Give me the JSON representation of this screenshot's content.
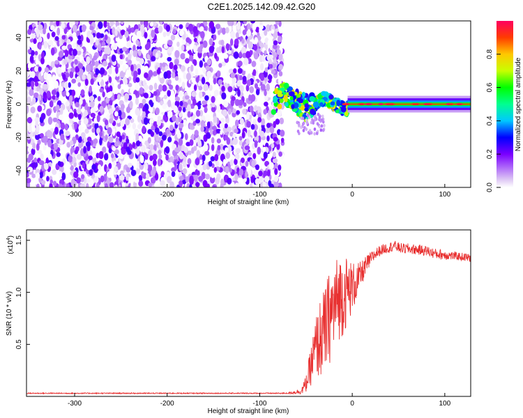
{
  "title": "C2E1.2025.142.09.42.G20",
  "colors": {
    "snr_line": "#e83030",
    "frame": "#000000",
    "background": "#ffffff"
  },
  "chart_data": [
    {
      "type": "heatmap",
      "name": "spectrogram",
      "xlabel": "Height of straight line (km)",
      "ylabel": "Frequency (Hz)",
      "xlim": [
        -352,
        128
      ],
      "ylim": [
        -50,
        50
      ],
      "xticks": [
        -300,
        -200,
        -100,
        0,
        100
      ],
      "xtick_labels": [
        "-300",
        "-200",
        "-100",
        "0",
        "100"
      ],
      "yticks": [
        -40,
        -20,
        0,
        20,
        40
      ],
      "ytick_labels": [
        "-40",
        "-20",
        "0",
        "20",
        "40"
      ],
      "colorbar": {
        "label": "Normalized spectral amplitude",
        "range": [
          0,
          1
        ],
        "ticks": [
          0.0,
          0.2,
          0.4,
          0.6,
          0.8
        ],
        "tick_labels": [
          "0.0",
          "0.2",
          "0.4",
          "0.6",
          "0.8"
        ],
        "colormap": "rainbow"
      },
      "features": {
        "noise_region_x": [
          -352,
          -78
        ],
        "noise_amplitude_range": [
          0.0,
          0.25
        ],
        "transition_x": [
          -85,
          -5
        ],
        "carrier_x": [
          -5,
          128
        ],
        "carrier_frequency_hz": 0,
        "carrier_amplitude": 1.0
      }
    },
    {
      "type": "line",
      "name": "snr",
      "xlabel": "Height of straight line (km)",
      "ylabel": "SNR (10 * v/v)",
      "y_multiplier_label": "(x10",
      "y_multiplier_exponent": "4",
      "y_multiplier_close": ")",
      "xlim": [
        -352,
        128
      ],
      "ylim": [
        0,
        1.6
      ],
      "xticks": [
        -300,
        -200,
        -100,
        0,
        100
      ],
      "xtick_labels": [
        "-300",
        "-200",
        "-100",
        "0",
        "100"
      ],
      "yticks": [
        0.5,
        1.0,
        1.5
      ],
      "ytick_labels": [
        "0.5",
        "1.0",
        "1.5"
      ],
      "x": [
        -352,
        -300,
        -250,
        -200,
        -150,
        -100,
        -70,
        -55,
        -50,
        -45,
        -40,
        -35,
        -30,
        -25,
        -20,
        -15,
        -10,
        -5,
        0,
        5,
        10,
        15,
        20,
        25,
        30,
        35,
        40,
        45,
        50,
        55,
        60,
        70,
        80,
        90,
        100,
        110,
        120,
        128
      ],
      "values": [
        0.03,
        0.03,
        0.03,
        0.03,
        0.03,
        0.03,
        0.03,
        0.05,
        0.12,
        0.28,
        0.45,
        0.55,
        0.62,
        0.75,
        0.85,
        0.95,
        0.98,
        1.02,
        1.05,
        1.1,
        1.18,
        1.26,
        1.32,
        1.37,
        1.4,
        1.42,
        1.43,
        1.45,
        1.43,
        1.42,
        1.42,
        1.41,
        1.4,
        1.37,
        1.36,
        1.35,
        1.34,
        1.33
      ],
      "noise_amplitude": [
        0.005,
        0.005,
        0.005,
        0.005,
        0.005,
        0.005,
        0.006,
        0.03,
        0.08,
        0.18,
        0.3,
        0.38,
        0.42,
        0.45,
        0.45,
        0.42,
        0.4,
        0.33,
        0.25,
        0.18,
        0.12,
        0.09,
        0.07,
        0.06,
        0.05,
        0.05,
        0.05,
        0.05,
        0.05,
        0.05,
        0.05,
        0.05,
        0.05,
        0.05,
        0.05,
        0.04,
        0.04,
        0.04
      ]
    }
  ]
}
